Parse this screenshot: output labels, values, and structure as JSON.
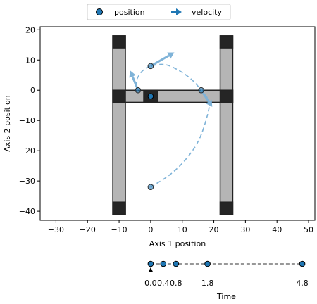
{
  "legend": {
    "position_label": "position",
    "velocity_label": "velocity",
    "placement": "top-center"
  },
  "colors": {
    "point": "#1f77b4",
    "trajectory": "#7fb3d8",
    "bar_fill": "#b5b5b5",
    "block_fill": "#252525",
    "outline": "#222222"
  },
  "chart_data": [
    {
      "type": "scatter",
      "xlabel": "Axis 1 position",
      "ylabel": "Axis 2 position",
      "xlim": [
        -35,
        52
      ],
      "ylim": [
        -43,
        21
      ],
      "xticks": [
        -30,
        -20,
        -10,
        0,
        10,
        20,
        30,
        40,
        50
      ],
      "yticks": [
        -40,
        -30,
        -20,
        -10,
        0,
        10,
        20
      ],
      "grid": false,
      "structure": {
        "left_rail": {
          "x": [
            -12,
            -8
          ],
          "y": [
            -41,
            18
          ]
        },
        "right_rail": {
          "x": [
            22,
            26
          ],
          "y": [
            -41,
            18
          ]
        },
        "crossbar": {
          "x": [
            -12,
            26
          ],
          "y": [
            -4,
            0
          ]
        },
        "blocks": [
          {
            "x": [
              -12,
              -8
            ],
            "y": [
              14,
              18
            ]
          },
          {
            "x": [
              -12,
              -8
            ],
            "y": [
              -41,
              -37
            ]
          },
          {
            "x": [
              22,
              26
            ],
            "y": [
              14,
              18
            ]
          },
          {
            "x": [
              22,
              26
            ],
            "y": [
              -41,
              -37
            ]
          },
          {
            "x": [
              -12,
              -8
            ],
            "y": [
              -4,
              0
            ]
          },
          {
            "x": [
              22,
              26
            ],
            "y": [
              -4,
              0
            ]
          },
          {
            "x": [
              -2.2,
              2.2
            ],
            "y": [
              -4,
              0
            ]
          }
        ]
      },
      "positions": [
        {
          "x": 0,
          "y": -32
        },
        {
          "x": 16,
          "y": 0
        },
        {
          "x": 0,
          "y": 8
        },
        {
          "x": -4,
          "y": 0
        }
      ],
      "current_position": {
        "x": 0,
        "y": -2
      },
      "trajectory": [
        [
          0,
          -32
        ],
        [
          6,
          -28
        ],
        [
          11,
          -23
        ],
        [
          15,
          -17
        ],
        [
          17.5,
          -10
        ],
        [
          18.5,
          -4
        ],
        [
          16,
          0
        ],
        [
          13,
          3.5
        ],
        [
          9,
          6.5
        ],
        [
          4.5,
          8.5
        ],
        [
          0,
          8
        ],
        [
          -2.5,
          6.5
        ],
        [
          -4.2,
          4
        ],
        [
          -4.5,
          2
        ],
        [
          -4,
          0
        ]
      ],
      "velocities": [
        {
          "x": 16,
          "y": 0,
          "dx": 3.5,
          "dy": -5.5
        },
        {
          "x": 0,
          "y": 8,
          "dx": 7.5,
          "dy": 4.5
        },
        {
          "x": -4,
          "y": 0,
          "dx": -2.5,
          "dy": 6.5
        }
      ]
    },
    {
      "type": "scatter",
      "xlabel": "Time",
      "xlim": [
        -35,
        52
      ],
      "tick_labels": [
        "0.0",
        "0.4",
        "0.8",
        "1.8",
        "4.8"
      ],
      "times": [
        0.0,
        0.4,
        0.8,
        1.8,
        4.8
      ],
      "current_time": 0.0
    }
  ]
}
